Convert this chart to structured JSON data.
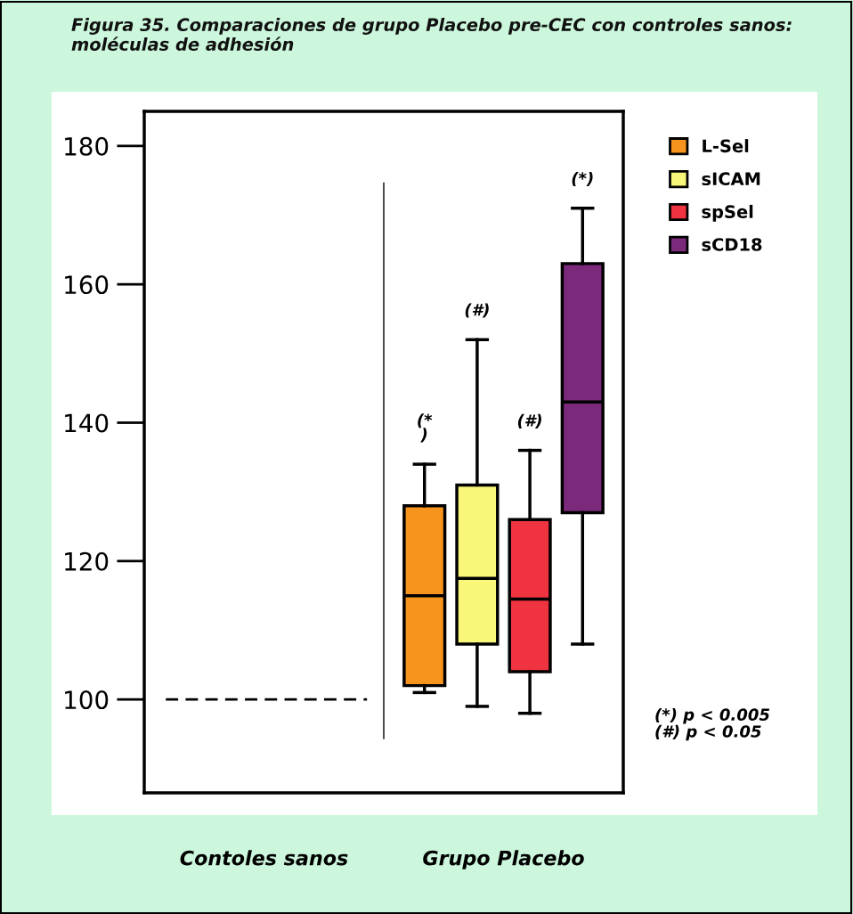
{
  "chart_data": {
    "type": "box",
    "title": "Figura 35. Comparaciones de grupo Placebo pre-CEC con controles sanos: moléculas de adhesión",
    "categories": [
      "Contoles sanos",
      "Grupo Placebo"
    ],
    "series": [
      {
        "name": "L-Sel",
        "color": "#f7941d",
        "boxes": [
          null,
          {
            "low": 101,
            "q1": 102,
            "median": 115,
            "q3": 128,
            "high": 134
          }
        ]
      },
      {
        "name": "sICAM",
        "color": "#f9f77a",
        "boxes": [
          null,
          {
            "low": 99,
            "q1": 108,
            "median": 117.5,
            "q3": 131,
            "high": 152
          }
        ]
      },
      {
        "name": "spSel",
        "color": "#ef3340",
        "boxes": [
          null,
          {
            "low": 98,
            "q1": 104,
            "median": 114.5,
            "q3": 126,
            "high": 136
          }
        ]
      },
      {
        "name": "sCD18",
        "color": "#7b2a7b",
        "boxes": [
          null,
          {
            "low": 108,
            "q1": 127,
            "median": 143,
            "q3": 163,
            "high": 171
          }
        ]
      }
    ],
    "ref_lines": [
      {
        "axis": "y",
        "value": 100,
        "label": null,
        "color": "#000000",
        "line_style": "dashed"
      }
    ],
    "annotations": [
      "(*\n)",
      "(#)",
      "(#)",
      "(*)",
      "(*) p < 0.005\n(#) p < 0.05"
    ],
    "ylim": [
      86.5,
      185
    ],
    "yticks": [
      100,
      120,
      140,
      160,
      180
    ],
    "grid": false,
    "legend": "top right"
  }
}
